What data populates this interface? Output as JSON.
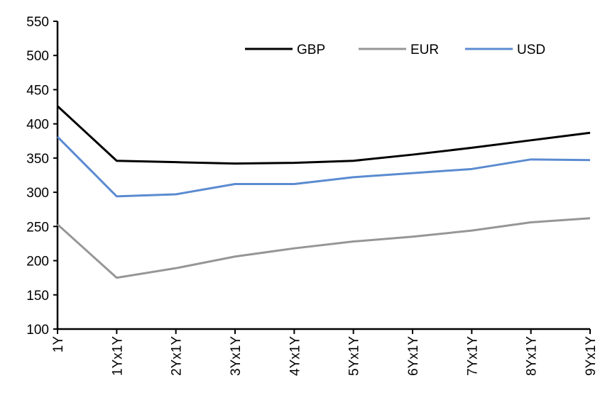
{
  "chart_data": {
    "type": "line",
    "title": "",
    "xlabel": "",
    "ylabel": "",
    "categories": [
      "1Y",
      "1Yx1Y",
      "2Yx1Y",
      "3Yx1Y",
      "4Yx1Y",
      "5Yx1Y",
      "6Yx1Y",
      "7Yx1Y",
      "8Yx1Y",
      "9Yx1Y"
    ],
    "ylim": [
      100,
      550
    ],
    "yticks": [
      100,
      150,
      200,
      250,
      300,
      350,
      400,
      450,
      500,
      550
    ],
    "grid": false,
    "legend_position": "top-right",
    "series": [
      {
        "name": "GBP",
        "color": "#000000",
        "values": [
          426,
          346,
          344,
          342,
          343,
          346,
          355,
          365,
          376,
          387
        ]
      },
      {
        "name": "EUR",
        "color": "#969696",
        "values": [
          253,
          175,
          189,
          206,
          218,
          228,
          235,
          244,
          256,
          262
        ]
      },
      {
        "name": "USD",
        "color": "#5b8bd0",
        "values": [
          381,
          294,
          297,
          312,
          312,
          322,
          328,
          334,
          348,
          347
        ]
      }
    ]
  }
}
